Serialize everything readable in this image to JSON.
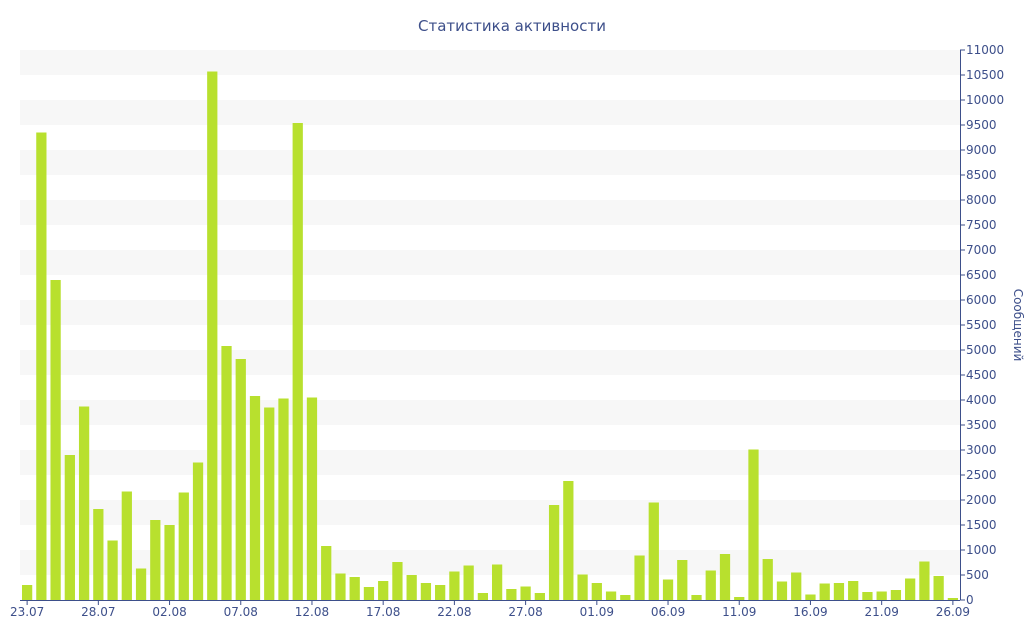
{
  "chart_data": {
    "type": "bar",
    "title": "Статистика активности",
    "xlabel": "",
    "ylabel": "Сообщений",
    "ylim": [
      0,
      11000
    ],
    "y_ticks": [
      0,
      500,
      1000,
      1500,
      2000,
      2500,
      3000,
      3500,
      4000,
      4500,
      5000,
      5500,
      6000,
      6500,
      7000,
      7500,
      8000,
      8500,
      9000,
      9500,
      10000,
      10500,
      11000
    ],
    "y_axis_position": "right",
    "grid": "alternating horizontal bands",
    "legend": "none",
    "x_tick_labels": [
      "23.07",
      "28.07",
      "02.08",
      "07.08",
      "12.08",
      "17.08",
      "22.08",
      "27.08",
      "01.09",
      "06.09",
      "11.09",
      "16.09",
      "21.09",
      "26.09"
    ],
    "x_tick_every": 5,
    "bar_color": "#b8e02e",
    "band_color": "#f7f7f7",
    "axis_color": "#3d4f8a",
    "values": [
      300,
      9350,
      6400,
      2900,
      3870,
      1820,
      1190,
      2170,
      630,
      1600,
      1500,
      2150,
      2750,
      10570,
      5080,
      4820,
      4080,
      3850,
      4030,
      9540,
      4050,
      1080,
      530,
      460,
      260,
      380,
      760,
      500,
      340,
      300,
      570,
      690,
      140,
      710,
      220,
      270,
      140,
      1900,
      2380,
      510,
      340,
      170,
      100,
      890,
      1950,
      410,
      800,
      100,
      590,
      920,
      60,
      3010,
      820,
      370,
      550,
      110,
      330,
      340,
      380,
      160,
      170,
      200,
      430,
      770,
      480,
      40
    ]
  }
}
